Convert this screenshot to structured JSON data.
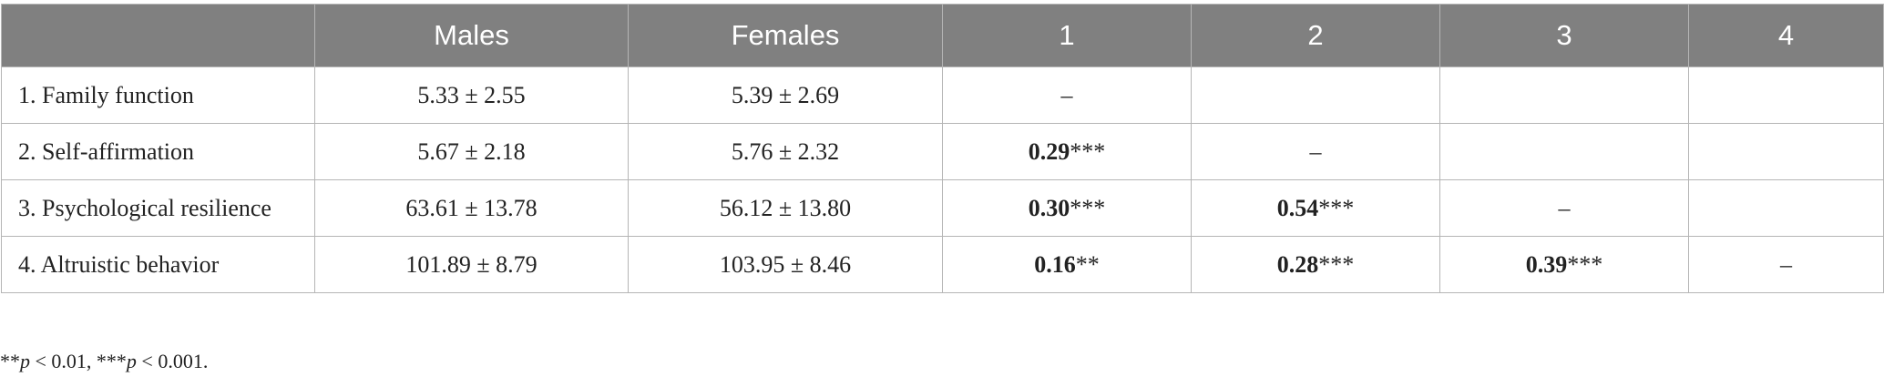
{
  "table": {
    "header": [
      null,
      "Males",
      "Females",
      "1",
      "2",
      "3",
      "4"
    ],
    "rows": [
      [
        "1. Family function",
        "5.33 ± 2.55",
        "5.39 ± 2.69",
        "–",
        null,
        null,
        null
      ],
      [
        "2. Self-affirmation",
        "5.67 ± 2.18",
        "5.76 ± 2.32",
        {
          "value": "0.29",
          "stars": "***"
        },
        "–",
        null,
        null
      ],
      [
        "3. Psychological resilience",
        "63.61 ± 13.78",
        "56.12 ± 13.80",
        {
          "value": "0.30",
          "stars": "***"
        },
        {
          "value": "0.54",
          "stars": "***"
        },
        "–",
        null
      ],
      [
        "4. Altruistic behavior",
        "101.89 ± 8.79",
        "103.95 ± 8.46",
        {
          "value": "0.16",
          "stars": "**"
        },
        {
          "value": "0.28",
          "stars": "***"
        },
        {
          "value": "0.39",
          "stars": "***"
        },
        "–"
      ]
    ]
  },
  "footnote": [
    "**",
    "p",
    " < 0.01, ***",
    "p",
    " < 0.001."
  ]
}
